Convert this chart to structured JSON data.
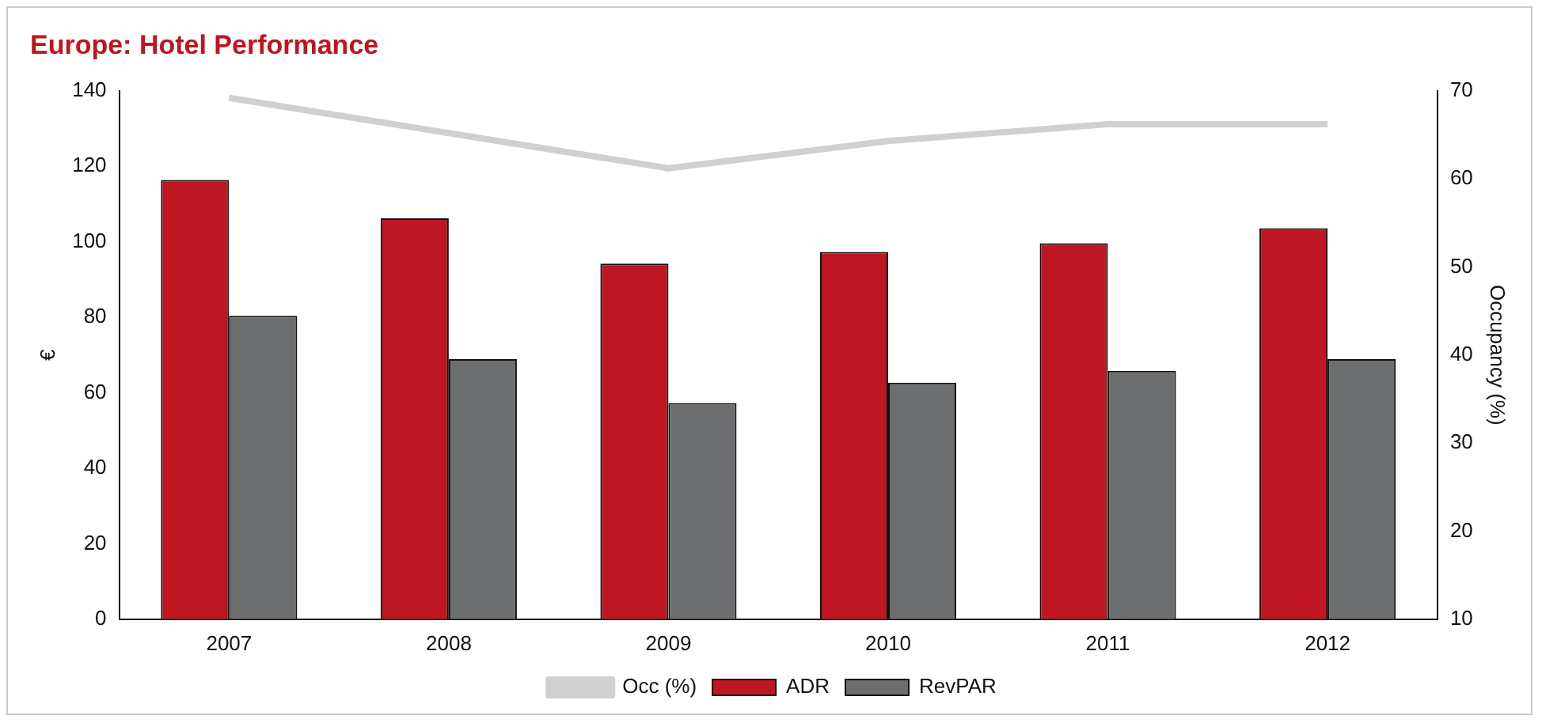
{
  "chart_data": {
    "type": "bar",
    "title": "Europe: Hotel Performance",
    "ylabel": "€",
    "y2label": "Occupancy (%)",
    "categories": [
      "2007",
      "2008",
      "2009",
      "2010",
      "2011",
      "2012"
    ],
    "series": [
      {
        "name": "ADR",
        "color": "#be1622",
        "values": [
          116.4,
          106.2,
          94.2,
          97.3,
          99.6,
          103.6
        ]
      },
      {
        "name": "RevPAR",
        "color": "#6d6e70",
        "values": [
          80.4,
          68.9,
          57.3,
          62.7,
          65.8,
          68.9
        ]
      },
      {
        "name": "Occ (%)",
        "type": "line",
        "axis": "y2",
        "color": "#cfd1d1",
        "values": [
          69.2,
          65.2,
          61.2,
          64.3,
          66.2,
          66.2
        ]
      }
    ],
    "ylim": [
      0,
      140
    ],
    "yticks": [
      0,
      20,
      40,
      60,
      80,
      100,
      120,
      140
    ],
    "y2lim": [
      10,
      70
    ],
    "y2ticks": [
      10,
      20,
      30,
      40,
      50,
      60,
      70
    ],
    "grid": false,
    "legend": "bottom",
    "marker": "none",
    "line_style": "solid"
  }
}
